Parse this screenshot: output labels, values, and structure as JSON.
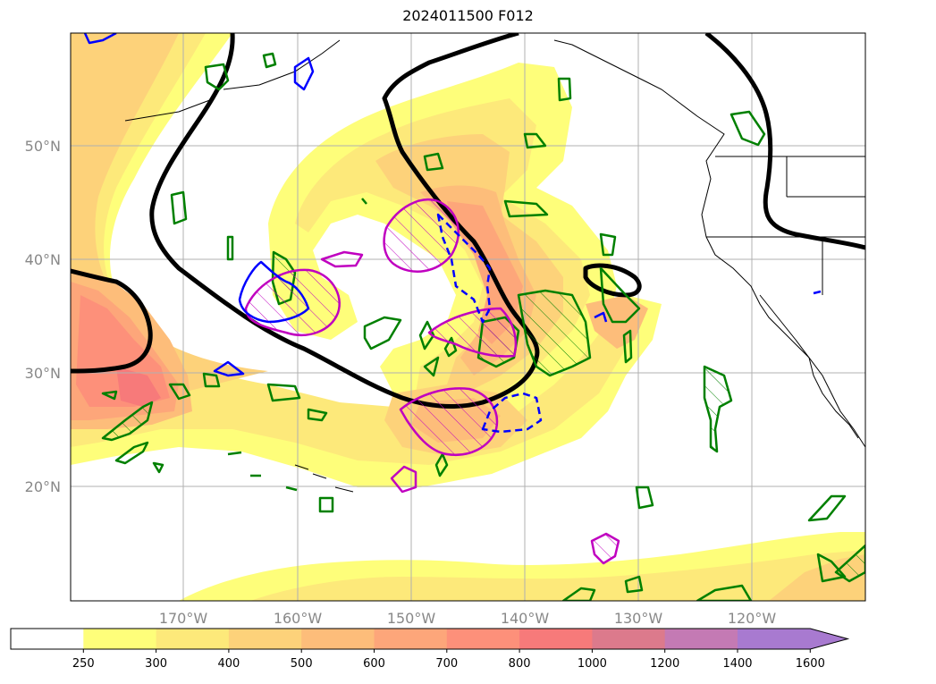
{
  "title": "2024011500 F012",
  "latitude_labels": [
    "50°N",
    "40°N",
    "30°N",
    "20°N"
  ],
  "longitude_labels": [
    "170°W",
    "160°W",
    "150°W",
    "140°W",
    "130°W",
    "120°W"
  ],
  "colorbar": {
    "ticks": [
      "250",
      "300",
      "400",
      "500",
      "600",
      "700",
      "800",
      "1000",
      "1200",
      "1400",
      "1600"
    ],
    "colors": [
      "#ffffff",
      "#fefe7a",
      "#fde97a",
      "#fdd27a",
      "#fdbd7a",
      "#fda67a",
      "#fd907a",
      "#f77a7a",
      "#dc7a8c",
      "#c47ab4",
      "#a87ad0"
    ]
  },
  "colors": {
    "green_contour": "#008000",
    "magenta_contour": "#c000c0",
    "blue_contour": "#0000ff",
    "black_contour": "#000000"
  }
}
